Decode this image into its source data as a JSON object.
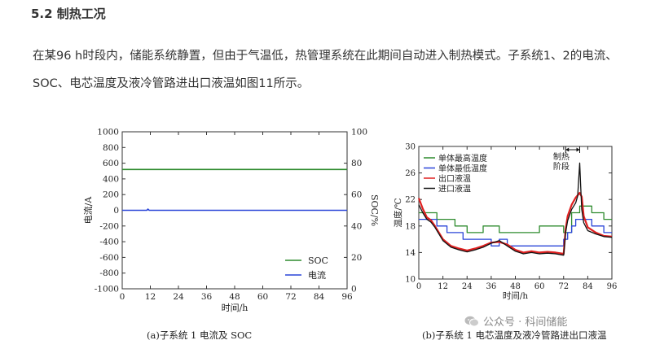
{
  "article": {
    "section_title": "5.2 制热工况",
    "paragraph": "在某96 h时段内，储能系统静置，但由于气温低，热管理系统在此期间自动进入制热模式。子系统1、2的电流、SOC、电芯温度及液冷管路进出口液温如图11所示。"
  },
  "captions": {
    "a": "(a)子系统 1 电流及 SOC",
    "b": "(b)子系统 1 电芯温度及液冷管路进出口液温"
  },
  "watermark": "公众号 · 科间储能",
  "chart_data": [
    {
      "type": "line",
      "title": "",
      "xlabel": "时间/h",
      "ylabel": "电流/A",
      "y2label": "SOC/%",
      "xlim": [
        0,
        96
      ],
      "ylim": [
        -1000,
        1000
      ],
      "y2lim": [
        0,
        100
      ],
      "xticks": [
        0,
        12,
        24,
        36,
        48,
        60,
        72,
        84,
        96
      ],
      "yticks": [
        -1000,
        -800,
        -600,
        -400,
        -200,
        0,
        200,
        400,
        600,
        800,
        1000
      ],
      "y2ticks": [
        0,
        20,
        40,
        60,
        80,
        100
      ],
      "legend_position": "bottom-right",
      "series": [
        {
          "name": "SOC",
          "axis": "right",
          "color": "#2e8b2e",
          "x": [
            0,
            96
          ],
          "y": [
            76,
            76
          ]
        },
        {
          "name": "电流",
          "axis": "left",
          "color": "#2a45d8",
          "x": [
            0,
            10.5,
            11,
            11.5,
            96
          ],
          "y": [
            0,
            0,
            15,
            0,
            0
          ]
        }
      ]
    },
    {
      "type": "line",
      "title": "",
      "xlabel": "时间/h",
      "ylabel": "温度/℃",
      "xlim": [
        0,
        96
      ],
      "ylim": [
        10,
        30
      ],
      "xticks": [
        0,
        12,
        24,
        36,
        48,
        60,
        72,
        84,
        96
      ],
      "yticks": [
        10,
        14,
        18,
        22,
        26,
        30
      ],
      "legend_position": "top-left",
      "annotation": {
        "text": [
          "制热",
          "阶段"
        ],
        "x_start": 73,
        "x_end": 80
      },
      "series": [
        {
          "name": "单体最高温度",
          "color": "#2e8b2e",
          "step": true,
          "x": [
            0,
            9,
            9,
            18,
            18,
            24,
            24,
            32,
            32,
            40,
            40,
            60,
            60,
            72,
            72,
            76,
            76,
            80,
            80,
            86,
            86,
            92,
            92,
            96
          ],
          "y": [
            20,
            20,
            19,
            19,
            18,
            18,
            17,
            17,
            18,
            18,
            17,
            17,
            18,
            18,
            17,
            17,
            20,
            20,
            21,
            21,
            20,
            20,
            19,
            19
          ]
        },
        {
          "name": "单体最低温度",
          "color": "#2a45d8",
          "step": true,
          "x": [
            0,
            9,
            9,
            14,
            14,
            22,
            22,
            36,
            36,
            40,
            40,
            44,
            44,
            72,
            72,
            74,
            74,
            76,
            76,
            78,
            78,
            86,
            86,
            92,
            92,
            96
          ],
          "y": [
            19,
            19,
            18,
            18,
            17,
            17,
            16,
            16,
            15,
            15,
            16,
            16,
            15,
            15,
            16,
            16,
            17,
            17,
            18,
            18,
            19,
            19,
            18,
            18,
            17,
            17
          ]
        },
        {
          "name": "出口液温",
          "color": "#e02020",
          "x": [
            0,
            2,
            4,
            6,
            8,
            10,
            12,
            16,
            20,
            24,
            28,
            32,
            36,
            40,
            44,
            48,
            52,
            56,
            60,
            64,
            68,
            72,
            73,
            74,
            76,
            78,
            80,
            81,
            82,
            84,
            88,
            92,
            96
          ],
          "y": [
            22.2,
            20.6,
            19.3,
            18.9,
            18.0,
            17.0,
            16.0,
            15.0,
            14.6,
            14.3,
            14.6,
            15.0,
            15.5,
            15.6,
            15.2,
            14.4,
            14.0,
            14.2,
            14.0,
            14.1,
            14.0,
            13.8,
            17.5,
            19.5,
            21.2,
            22.3,
            23.0,
            22.4,
            19.5,
            17.8,
            17.0,
            16.5,
            16.4
          ]
        },
        {
          "name": "进口液温",
          "color": "#111111",
          "x": [
            0,
            2,
            4,
            6,
            8,
            10,
            12,
            16,
            20,
            24,
            28,
            32,
            36,
            40,
            44,
            48,
            52,
            56,
            60,
            64,
            68,
            72,
            73,
            74,
            76,
            78,
            79,
            80,
            80.5,
            81,
            82,
            84,
            88,
            92,
            96
          ],
          "y": [
            21.2,
            20.0,
            19.0,
            18.6,
            17.8,
            16.8,
            15.8,
            14.8,
            14.4,
            14.1,
            14.4,
            14.8,
            15.4,
            15.8,
            15.0,
            14.2,
            13.8,
            14.0,
            13.8,
            13.9,
            13.8,
            13.6,
            17.0,
            18.8,
            20.5,
            21.5,
            22.5,
            27.5,
            24.0,
            20.5,
            18.5,
            17.3,
            16.8,
            16.4,
            16.3
          ]
        }
      ]
    }
  ]
}
